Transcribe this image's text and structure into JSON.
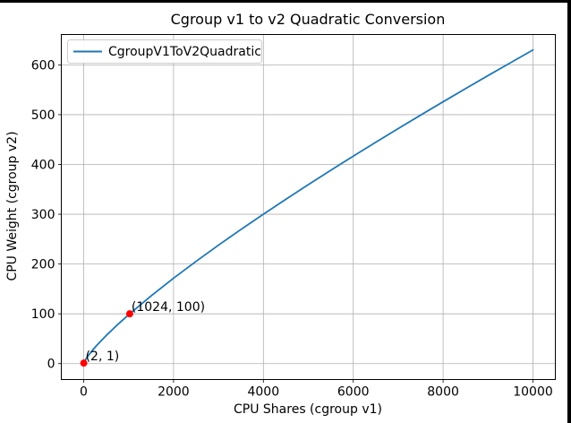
{
  "chart_data": {
    "type": "line",
    "title": "Cgroup v1 to v2 Quadratic Conversion",
    "xlabel": "CPU Shares (cgroup v1)",
    "ylabel": "CPU Weight (cgroup v2)",
    "grid": true,
    "grid_color": "#b0b0b0",
    "background_color": "#ffffff",
    "axes_edge_color": "#000000",
    "xlim": [
      -498,
      10498
    ],
    "ylim": [
      -32,
      661
    ],
    "x_ticks": [
      0,
      2000,
      4000,
      6000,
      8000,
      10000
    ],
    "y_ticks": [
      0,
      100,
      200,
      300,
      400,
      500,
      600
    ],
    "legend": {
      "position": "upper-left",
      "entries": [
        {
          "label": "CgroupV1ToV2Quadratic",
          "color": "#1f77b4"
        }
      ]
    },
    "series": [
      {
        "name": "CgroupV1ToV2Quadratic",
        "color": "#1f77b4",
        "points": [
          [
            2,
            1
          ],
          [
            50,
            9.3
          ],
          [
            100,
            15.8
          ],
          [
            200,
            27.2
          ],
          [
            300,
            37.5
          ],
          [
            500,
            56.3
          ],
          [
            750,
            77.9
          ],
          [
            1024,
            100
          ],
          [
            1500,
            135.9
          ],
          [
            2000,
            171.5
          ],
          [
            2500,
            205.3
          ],
          [
            3000,
            237.9
          ],
          [
            3500,
            269.4
          ],
          [
            4000,
            300.1
          ],
          [
            4500,
            330.1
          ],
          [
            5000,
            359.5
          ],
          [
            5500,
            388.3
          ],
          [
            6000,
            416.6
          ],
          [
            6500,
            444.6
          ],
          [
            7000,
            472.0
          ],
          [
            7500,
            499.1
          ],
          [
            8000,
            525.9
          ],
          [
            8500,
            552.3
          ],
          [
            9000,
            578.5
          ],
          [
            9500,
            604.3
          ],
          [
            10000,
            630.0
          ]
        ]
      }
    ],
    "annotated_points": [
      {
        "x": 2,
        "y": 1,
        "label": "(2, 1)",
        "marker_color": "#ff0000"
      },
      {
        "x": 1024,
        "y": 100,
        "label": "(1024, 100)",
        "marker_color": "#ff0000"
      }
    ]
  }
}
